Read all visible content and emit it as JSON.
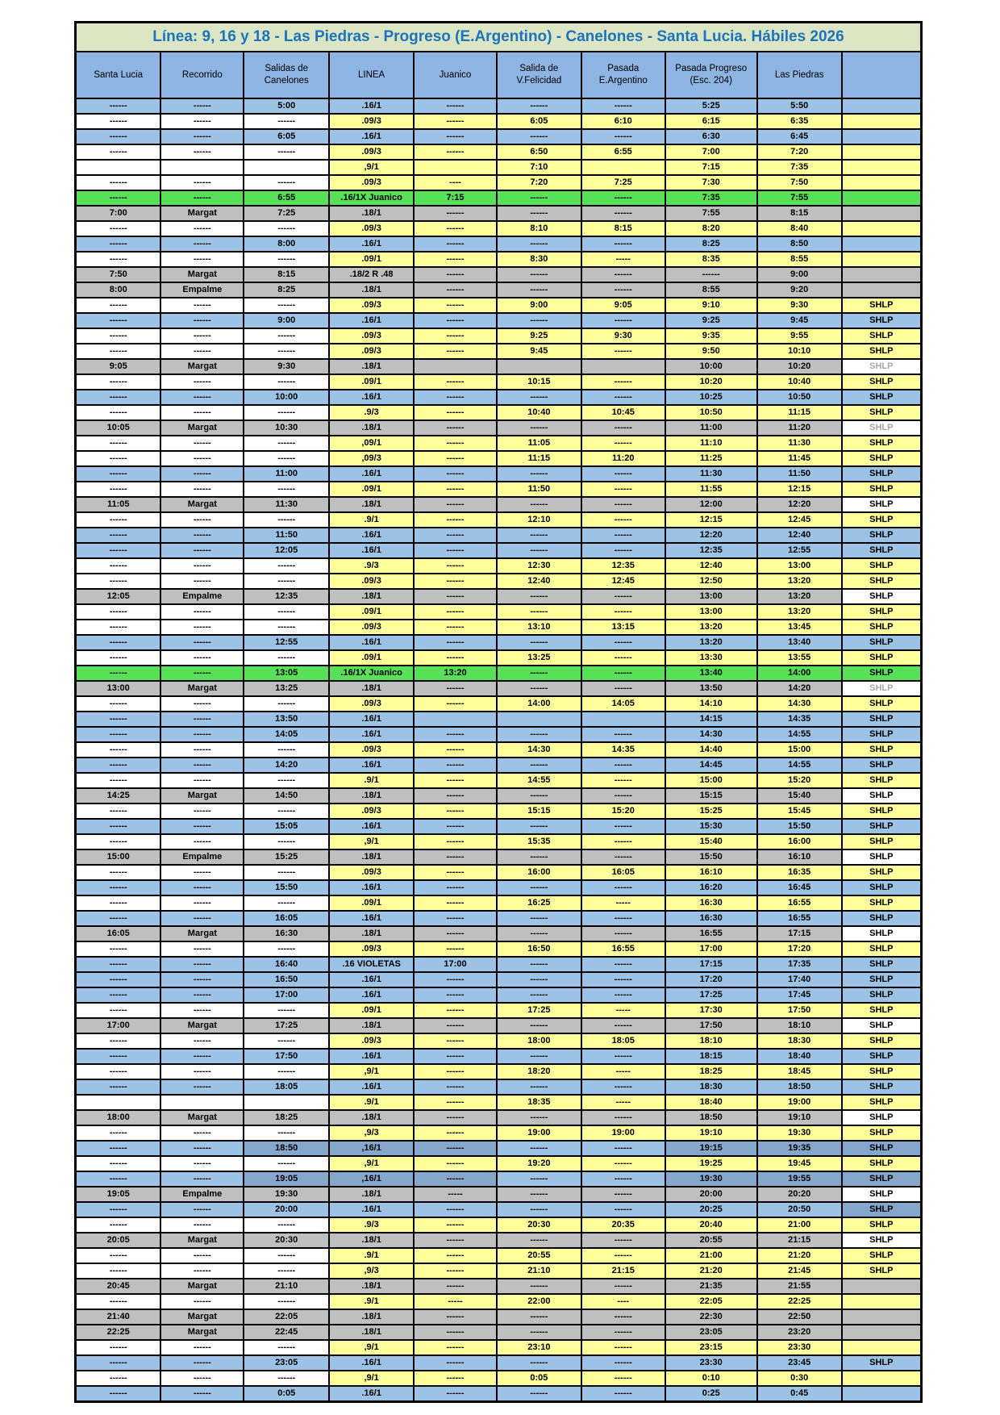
{
  "title": "Línea: 9, 16 y 18 - Las Piedras - Progreso (E.Argentino) - Canelones - Santa Lucia. Hábiles 2026",
  "columns": [
    "Santa Lucia",
    "Recorrido",
    "Salidas de Canelones",
    "LINEA",
    "Juanico",
    "Salida de V.Felicidad",
    "Pasada E.Argentino",
    "Pasada Progreso (Esc. 204)",
    "Las Piedras",
    ""
  ],
  "colors": {
    "title_bg": "#dce5c4",
    "title_text": "#1c74bc",
    "header_bg": "#8db4e2",
    "row_blue": "#9cc2e5",
    "row_blue_dark": "#84a7cb",
    "row_yellow": "#ffff9c",
    "row_gray": "#bfbfbf",
    "row_green": "#58e058",
    "muted_text": "#a6a6a6",
    "border": "#000000"
  },
  "shlp_label": "SHLP",
  "rows": [
    {
      "t": "blue",
      "v": [
        "------",
        "------",
        "5:00",
        ".16/1",
        "------",
        "------",
        "------",
        "5:25",
        "5:50",
        ""
      ]
    },
    {
      "t": "yellow",
      "v": [
        "------",
        "------",
        "------",
        ".09/3",
        "------",
        "6:05",
        "6:10",
        "6:15",
        "6:35",
        ""
      ]
    },
    {
      "t": "blue",
      "v": [
        "------",
        "------",
        "6:05",
        ".16/1",
        "------",
        "------",
        "------",
        "6:30",
        "6:45",
        ""
      ]
    },
    {
      "t": "yellow",
      "v": [
        "------",
        "------",
        "------",
        ".09/3",
        "------",
        "6:50",
        "6:55",
        "7:00",
        "7:20",
        ""
      ]
    },
    {
      "t": "yellow",
      "v": [
        "",
        "",
        "",
        ",9/1",
        "",
        "7:10",
        "",
        "7:15",
        "7:35",
        ""
      ]
    },
    {
      "t": "yellow",
      "v": [
        "------",
        "------",
        "------",
        ".09/3",
        "----",
        "7:20",
        "7:25",
        "7:30",
        "7:50",
        ""
      ]
    },
    {
      "t": "green",
      "v": [
        "------",
        "------",
        "6:55",
        ".16/1X Juanico",
        "7:15",
        "------",
        "------",
        "7:35",
        "7:55",
        ""
      ]
    },
    {
      "t": "gray",
      "v": [
        "7:00",
        "Margat",
        "7:25",
        ".18/1",
        "------",
        "------",
        "------",
        "7:55",
        "8:15",
        ""
      ]
    },
    {
      "t": "yellow",
      "v": [
        "------",
        "------",
        "------",
        ".09/3",
        "------",
        "8:10",
        "8:15",
        "8:20",
        "8:40",
        ""
      ]
    },
    {
      "t": "blue",
      "v": [
        "------",
        "------",
        "8:00",
        ".16/1",
        "------",
        "------",
        "------",
        "8:25",
        "8:50",
        ""
      ]
    },
    {
      "t": "yellow",
      "v": [
        "------",
        "------",
        "------",
        ".09/1",
        "------",
        "8:30",
        "-----",
        "8:35",
        "8:55",
        ""
      ]
    },
    {
      "t": "gray",
      "v": [
        "7:50",
        "Margat",
        "8:15",
        ".18/2 R .48",
        "------",
        "------",
        "------",
        "------",
        "9:00",
        ""
      ]
    },
    {
      "t": "gray",
      "v": [
        "8:00",
        "Empalme",
        "8:25",
        ".18/1",
        "------",
        "------",
        "------",
        "8:55",
        "9:20",
        ""
      ]
    },
    {
      "t": "yellow",
      "v": [
        "------",
        "------",
        "------",
        ".09/3",
        "------",
        "9:00",
        "9:05",
        "9:10",
        "9:30",
        "SHLP"
      ]
    },
    {
      "t": "blue",
      "v": [
        "------",
        "------",
        "9:00",
        ".16/1",
        "------",
        "------",
        "------",
        "9:25",
        "9:45",
        "SHLP"
      ]
    },
    {
      "t": "yellow",
      "v": [
        "------",
        "------",
        "------",
        ".09/3",
        "------",
        "9:25",
        "9:30",
        "9:35",
        "9:55",
        "SHLP"
      ]
    },
    {
      "t": "yellow",
      "v": [
        "------",
        "------",
        "------",
        ".09/3",
        "------",
        "9:45",
        "------",
        "9:50",
        "10:10",
        "SHLP"
      ]
    },
    {
      "t": "gray",
      "f": "muted",
      "v": [
        "9:05",
        "Margat",
        "9:30",
        ".18/1",
        "",
        "",
        "",
        "10:00",
        "10:20",
        "SHLP"
      ]
    },
    {
      "t": "yellow",
      "v": [
        "------",
        "------",
        "------",
        ".09/1",
        "------",
        "10:15",
        "------",
        "10:20",
        "10:40",
        "SHLP"
      ]
    },
    {
      "t": "blue",
      "v": [
        "------",
        "------",
        "10:00",
        ".16/1",
        "------",
        "------",
        "------",
        "10:25",
        "10:50",
        "SHLP"
      ]
    },
    {
      "t": "yellow",
      "v": [
        "------",
        "------",
        "------",
        ".9/3",
        "------",
        "10:40",
        "10:45",
        "10:50",
        "11:15",
        "SHLP"
      ]
    },
    {
      "t": "gray",
      "f": "muted",
      "v": [
        "10:05",
        "Margat",
        "10:30",
        ".18/1",
        "------",
        "------",
        "------",
        "11:00",
        "11:20",
        "SHLP"
      ]
    },
    {
      "t": "yellow",
      "v": [
        "------",
        "------",
        "------",
        ",09/1",
        "------",
        "11:05",
        "------",
        "11:10",
        "11:30",
        "SHLP"
      ]
    },
    {
      "t": "yellow",
      "v": [
        "------",
        "------",
        "------",
        ",09/3",
        "------",
        "11:15",
        "11:20",
        "11:25",
        "11:45",
        "SHLP"
      ]
    },
    {
      "t": "blue",
      "v": [
        "------",
        "------",
        "11:00",
        ".16/1",
        "------",
        "------",
        "------",
        "11:30",
        "11:50",
        "SHLP"
      ]
    },
    {
      "t": "yellow",
      "v": [
        "------",
        "------",
        "------",
        ".09/1",
        "------",
        "11:50",
        "------",
        "11:55",
        "12:15",
        "SHLP"
      ]
    },
    {
      "t": "gray",
      "v": [
        "11:05",
        "Margat",
        "11:30",
        ".18/1",
        "------",
        "------",
        "------",
        "12:00",
        "12:20",
        "SHLP"
      ]
    },
    {
      "t": "yellow",
      "v": [
        "------",
        "------",
        "------",
        ".9/1",
        "------",
        "12:10",
        "------",
        "12:15",
        "12:45",
        "SHLP"
      ]
    },
    {
      "t": "blue",
      "v": [
        "------",
        "------",
        "11:50",
        ".16/1",
        "------",
        "------",
        "------",
        "12:20",
        "12:40",
        "SHLP"
      ]
    },
    {
      "t": "blue",
      "v": [
        "------",
        "------",
        "12:05",
        ".16/1",
        "------",
        "------",
        "------",
        "12:35",
        "12:55",
        "SHLP"
      ]
    },
    {
      "t": "yellow",
      "v": [
        "------",
        "------",
        "------",
        ".9/3",
        "------",
        "12:30",
        "12:35",
        "12:40",
        "13:00",
        "SHLP"
      ]
    },
    {
      "t": "yellow",
      "v": [
        "------",
        "------",
        "------",
        ".09/3",
        "------",
        "12:40",
        "12:45",
        "12:50",
        "13:20",
        "SHLP"
      ]
    },
    {
      "t": "gray",
      "v": [
        "12:05",
        "Empalme",
        "12:35",
        ".18/1",
        "------",
        "------",
        "------",
        "13:00",
        "13:20",
        "SHLP"
      ]
    },
    {
      "t": "yellow",
      "v": [
        "------",
        "------",
        "------",
        ".09/1",
        "------",
        "------",
        "------",
        "13:00",
        "13:20",
        "SHLP"
      ]
    },
    {
      "t": "yellow",
      "v": [
        "------",
        "------",
        "------",
        ".09/3",
        "------",
        "13:10",
        "13:15",
        "13:20",
        "13:45",
        "SHLP"
      ]
    },
    {
      "t": "blue",
      "v": [
        "------",
        "------",
        "12:55",
        ".16/1",
        "------",
        "------",
        "------",
        "13:20",
        "13:40",
        "SHLP"
      ]
    },
    {
      "t": "yellow",
      "v": [
        "------",
        "------",
        "------",
        ".09/1",
        "------",
        "13:25",
        "------",
        "13:30",
        "13:55",
        "SHLP"
      ]
    },
    {
      "t": "green",
      "v": [
        "------",
        "------",
        "13:05",
        ".16/1X Juanico",
        "13:20",
        "------",
        "------",
        "13:40",
        "14:00",
        "SHLP"
      ]
    },
    {
      "t": "gray",
      "f": "muted",
      "v": [
        "13:00",
        "Margat",
        "13:25",
        ".18/1",
        "------",
        "------",
        "------",
        "13:50",
        "14:20",
        "SHLP"
      ]
    },
    {
      "t": "yellow",
      "v": [
        "------",
        "------",
        "------",
        ".09/3",
        "------",
        "14:00",
        "14:05",
        "14:10",
        "14:30",
        "SHLP"
      ]
    },
    {
      "t": "blue",
      "v": [
        "------",
        "------",
        "13:50",
        ".16/1",
        "",
        "",
        "",
        "14:15",
        "14:35",
        "SHLP"
      ]
    },
    {
      "t": "blue",
      "v": [
        "------",
        "------",
        "14:05",
        ".16/1",
        "------",
        "------",
        "------",
        "14:30",
        "14:55",
        "SHLP"
      ]
    },
    {
      "t": "yellow",
      "v": [
        "------",
        "------",
        "------",
        ".09/3",
        "------",
        "14:30",
        "14:35",
        "14:40",
        "15:00",
        "SHLP"
      ]
    },
    {
      "t": "blue",
      "v": [
        "------",
        "------",
        "14:20",
        ".16/1",
        "------",
        "------",
        "------",
        "14:45",
        "14:55",
        "SHLP"
      ]
    },
    {
      "t": "yellow",
      "v": [
        "------",
        "------",
        "------",
        ".9/1",
        "------",
        "14:55",
        "------",
        "15:00",
        "15:20",
        "SHLP"
      ]
    },
    {
      "t": "gray",
      "v": [
        "14:25",
        "Margat",
        "14:50",
        ".18/1",
        "------",
        "------",
        "------",
        "15:15",
        "15:40",
        "SHLP"
      ]
    },
    {
      "t": "yellow",
      "v": [
        "------",
        "------",
        "------",
        ".09/3",
        "------",
        "15:15",
        "15:20",
        "15:25",
        "15:45",
        "SHLP"
      ]
    },
    {
      "t": "blue",
      "v": [
        "------",
        "------",
        "15:05",
        ".16/1",
        "------",
        "------",
        "------",
        "15:30",
        "15:50",
        "SHLP"
      ]
    },
    {
      "t": "yellow",
      "v": [
        "------",
        "------",
        "------",
        ",9/1",
        "------",
        "15:35",
        "------",
        "15:40",
        "16:00",
        "SHLP"
      ]
    },
    {
      "t": "gray",
      "v": [
        "15:00",
        "Empalme",
        "15:25",
        ".18/1",
        "------",
        "------",
        "------",
        "15:50",
        "16:10",
        "SHLP"
      ]
    },
    {
      "t": "yellow",
      "v": [
        "------",
        "------",
        "------",
        ".09/3",
        "------",
        "16:00",
        "16:05",
        "16:10",
        "16:35",
        "SHLP"
      ]
    },
    {
      "t": "blue",
      "v": [
        "------",
        "------",
        "15:50",
        ".16/1",
        "------",
        "------",
        "------",
        "16:20",
        "16:45",
        "SHLP"
      ]
    },
    {
      "t": "yellow",
      "v": [
        "------",
        "------",
        "------",
        ".09/1",
        "------",
        "16:25",
        "-----",
        "16:30",
        "16:55",
        "SHLP"
      ]
    },
    {
      "t": "blue",
      "v": [
        "------",
        "------",
        "16:05",
        ".16/1",
        "------",
        "------",
        "------",
        "16:30",
        "16:55",
        "SHLP"
      ]
    },
    {
      "t": "gray",
      "v": [
        "16:05",
        "Margat",
        "16:30",
        ".18/1",
        "------",
        "------",
        "------",
        "16:55",
        "17:15",
        "SHLP"
      ]
    },
    {
      "t": "yellow",
      "v": [
        "------",
        "------",
        "------",
        ".09/3",
        "------",
        "16:50",
        "16:55",
        "17:00",
        "17:20",
        "SHLP"
      ]
    },
    {
      "t": "blue",
      "v": [
        "------",
        "------",
        "16:40",
        ".16 VIOLETAS",
        "17:00",
        "------",
        "------",
        "17:15",
        "17:35",
        "SHLP"
      ]
    },
    {
      "t": "blue",
      "v": [
        "------",
        "------",
        "16:50",
        ".16/1",
        "------",
        "------",
        "------",
        "17:20",
        "17:40",
        "SHLP"
      ]
    },
    {
      "t": "blue",
      "v": [
        "------",
        "------",
        "17:00",
        ".16/1",
        "------",
        "------",
        "------",
        "17:25",
        "17:45",
        "SHLP"
      ]
    },
    {
      "t": "yellow",
      "v": [
        "------",
        "------",
        "------",
        ".09/1",
        "------",
        "17:25",
        "-----",
        "17:30",
        "17:50",
        "SHLP"
      ]
    },
    {
      "t": "gray",
      "v": [
        "17:00",
        "Margat",
        "17:25",
        ".18/1",
        "------",
        "------",
        "------",
        "17:50",
        "18:10",
        "SHLP"
      ]
    },
    {
      "t": "yellow",
      "v": [
        "------",
        "------",
        "------",
        ".09/3",
        "------",
        "18:00",
        "18:05",
        "18:10",
        "18:30",
        "SHLP"
      ]
    },
    {
      "t": "blue",
      "v": [
        "------",
        "------",
        "17:50",
        ".16/1",
        "------",
        "------",
        "------",
        "18:15",
        "18:40",
        "SHLP"
      ]
    },
    {
      "t": "yellow",
      "v": [
        "------",
        "------",
        "------",
        ",9/1",
        "------",
        "18:20",
        "-----",
        "18:25",
        "18:45",
        "SHLP"
      ]
    },
    {
      "t": "blue",
      "v": [
        "------",
        "------",
        "18:05",
        ".16/1",
        "------",
        "------",
        "------",
        "18:30",
        "18:50",
        "SHLP"
      ]
    },
    {
      "t": "yellow",
      "v": [
        "",
        "",
        "",
        ".9/1",
        "------",
        "18:35",
        "-----",
        "18:40",
        "19:00",
        "SHLP"
      ]
    },
    {
      "t": "gray",
      "v": [
        "18:00",
        "Margat",
        "18:25",
        ".18/1",
        "------",
        "------",
        "------",
        "18:50",
        "19:10",
        "SHLP"
      ]
    },
    {
      "t": "yellow",
      "v": [
        "------",
        "------",
        "------",
        ",9/3",
        "------",
        "19:00",
        "19:00",
        "19:10",
        "19:30",
        "SHLP"
      ]
    },
    {
      "t": "blue",
      "f": "darkmix",
      "v": [
        "------",
        "------",
        "18:50",
        ",16/1",
        "------",
        "------",
        "------",
        "19:15",
        "19:35",
        "SHLP"
      ]
    },
    {
      "t": "yellow",
      "v": [
        "------",
        "------",
        "------",
        ",9/1",
        "------",
        "19:20",
        "------",
        "19:25",
        "19:45",
        "SHLP"
      ]
    },
    {
      "t": "blue",
      "f": "darkmix",
      "v": [
        "------",
        "------",
        "19:05",
        ",16/1",
        "------",
        "------",
        "------",
        "19:30",
        "19:55",
        "SHLP"
      ]
    },
    {
      "t": "gray",
      "v": [
        "19:05",
        "Empalme",
        "19:30",
        ".18/1",
        "-----",
        "------",
        "------",
        "20:00",
        "20:20",
        "SHLP"
      ]
    },
    {
      "t": "blue",
      "f": "shlpdark",
      "v": [
        "------",
        "------",
        "20:00",
        ".16/1",
        "------",
        "------",
        "------",
        "20:25",
        "20:50",
        "SHLP"
      ]
    },
    {
      "t": "yellow",
      "v": [
        "------",
        "------",
        "------",
        ".9/3",
        "------",
        "20:30",
        "20:35",
        "20:40",
        "21:00",
        "SHLP"
      ]
    },
    {
      "t": "gray",
      "v": [
        "20:05",
        "Margat",
        "20:30",
        ".18/1",
        "------",
        "------",
        "------",
        "20:55",
        "21:15",
        "SHLP"
      ]
    },
    {
      "t": "yellow",
      "v": [
        "------",
        "------",
        "------",
        ".9/1",
        "------",
        "20:55",
        "------",
        "21:00",
        "21:20",
        "SHLP"
      ]
    },
    {
      "t": "yellow",
      "v": [
        "------",
        "------",
        "------",
        ",9/3",
        "------",
        "21:10",
        "21:15",
        "21:20",
        "21:45",
        "SHLP"
      ]
    },
    {
      "t": "gray",
      "v": [
        "20:45",
        "Margat",
        "21:10",
        ".18/1",
        "------",
        "------",
        "------",
        "21:35",
        "21:55",
        ""
      ]
    },
    {
      "t": "yellow",
      "v": [
        "------",
        "------",
        "------",
        ".9/1",
        "-----",
        "22:00",
        "----",
        "22:05",
        "22:25",
        ""
      ]
    },
    {
      "t": "gray",
      "v": [
        "21:40",
        "Margat",
        "22:05",
        ".18/1",
        "------",
        "------",
        "------",
        "22:30",
        "22:50",
        ""
      ]
    },
    {
      "t": "gray",
      "v": [
        "22:25",
        "Margat",
        "22:45",
        ".18/1",
        "------",
        "------",
        "------",
        "23:05",
        "23:20",
        ""
      ]
    },
    {
      "t": "yellow",
      "v": [
        "------",
        "------",
        "------",
        ",9/1",
        "------",
        "23:10",
        "------",
        "23:15",
        "23:30",
        ""
      ]
    },
    {
      "t": "blue",
      "v": [
        "------",
        "------",
        "23:05",
        ".16/1",
        "------",
        "------",
        "------",
        "23:30",
        "23:45",
        "SHLP"
      ]
    },
    {
      "t": "yellow",
      "v": [
        "------",
        "------",
        "------",
        ",9/1",
        "------",
        "0:05",
        "------",
        "0:10",
        "0:30",
        ""
      ]
    },
    {
      "t": "blue",
      "v": [
        "------",
        "------",
        "0:05",
        ".16/1",
        "------",
        "------",
        "------",
        "0:25",
        "0:45",
        ""
      ]
    }
  ]
}
